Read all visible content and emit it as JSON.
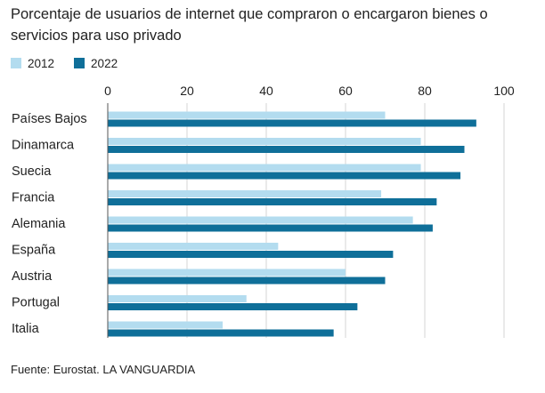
{
  "title": "Porcentaje de usuarios de internet que compraron o encargaron bienes o servicios para uso privado",
  "source": "Fuente: Eurostat. LA VANGUARDIA",
  "colors": {
    "s2012": "#b3dcef",
    "s2022": "#0f6f99",
    "grid": "#d6d6d6",
    "axis": "#555555"
  },
  "chart_data": {
    "type": "bar",
    "orientation": "horizontal",
    "title": "Porcentaje de usuarios de internet que compraron o encargaron bienes o servicios para uso privado",
    "xlabel": "",
    "ylabel": "",
    "xlim": [
      0,
      100
    ],
    "ticks": [
      "0",
      "20",
      "40",
      "60",
      "80",
      "100"
    ],
    "grid": true,
    "legend": "top-left",
    "categories": [
      "Países Bajos",
      "Dinamarca",
      "Suecia",
      "Francia",
      "Alemania",
      "España",
      "Austria",
      "Portugal",
      "Italia"
    ],
    "series": [
      {
        "name": "2012",
        "values": [
          70,
          79,
          79,
          69,
          77,
          43,
          60,
          35,
          29
        ]
      },
      {
        "name": "2022",
        "values": [
          93,
          90,
          89,
          83,
          82,
          72,
          70,
          63,
          57
        ]
      }
    ]
  }
}
